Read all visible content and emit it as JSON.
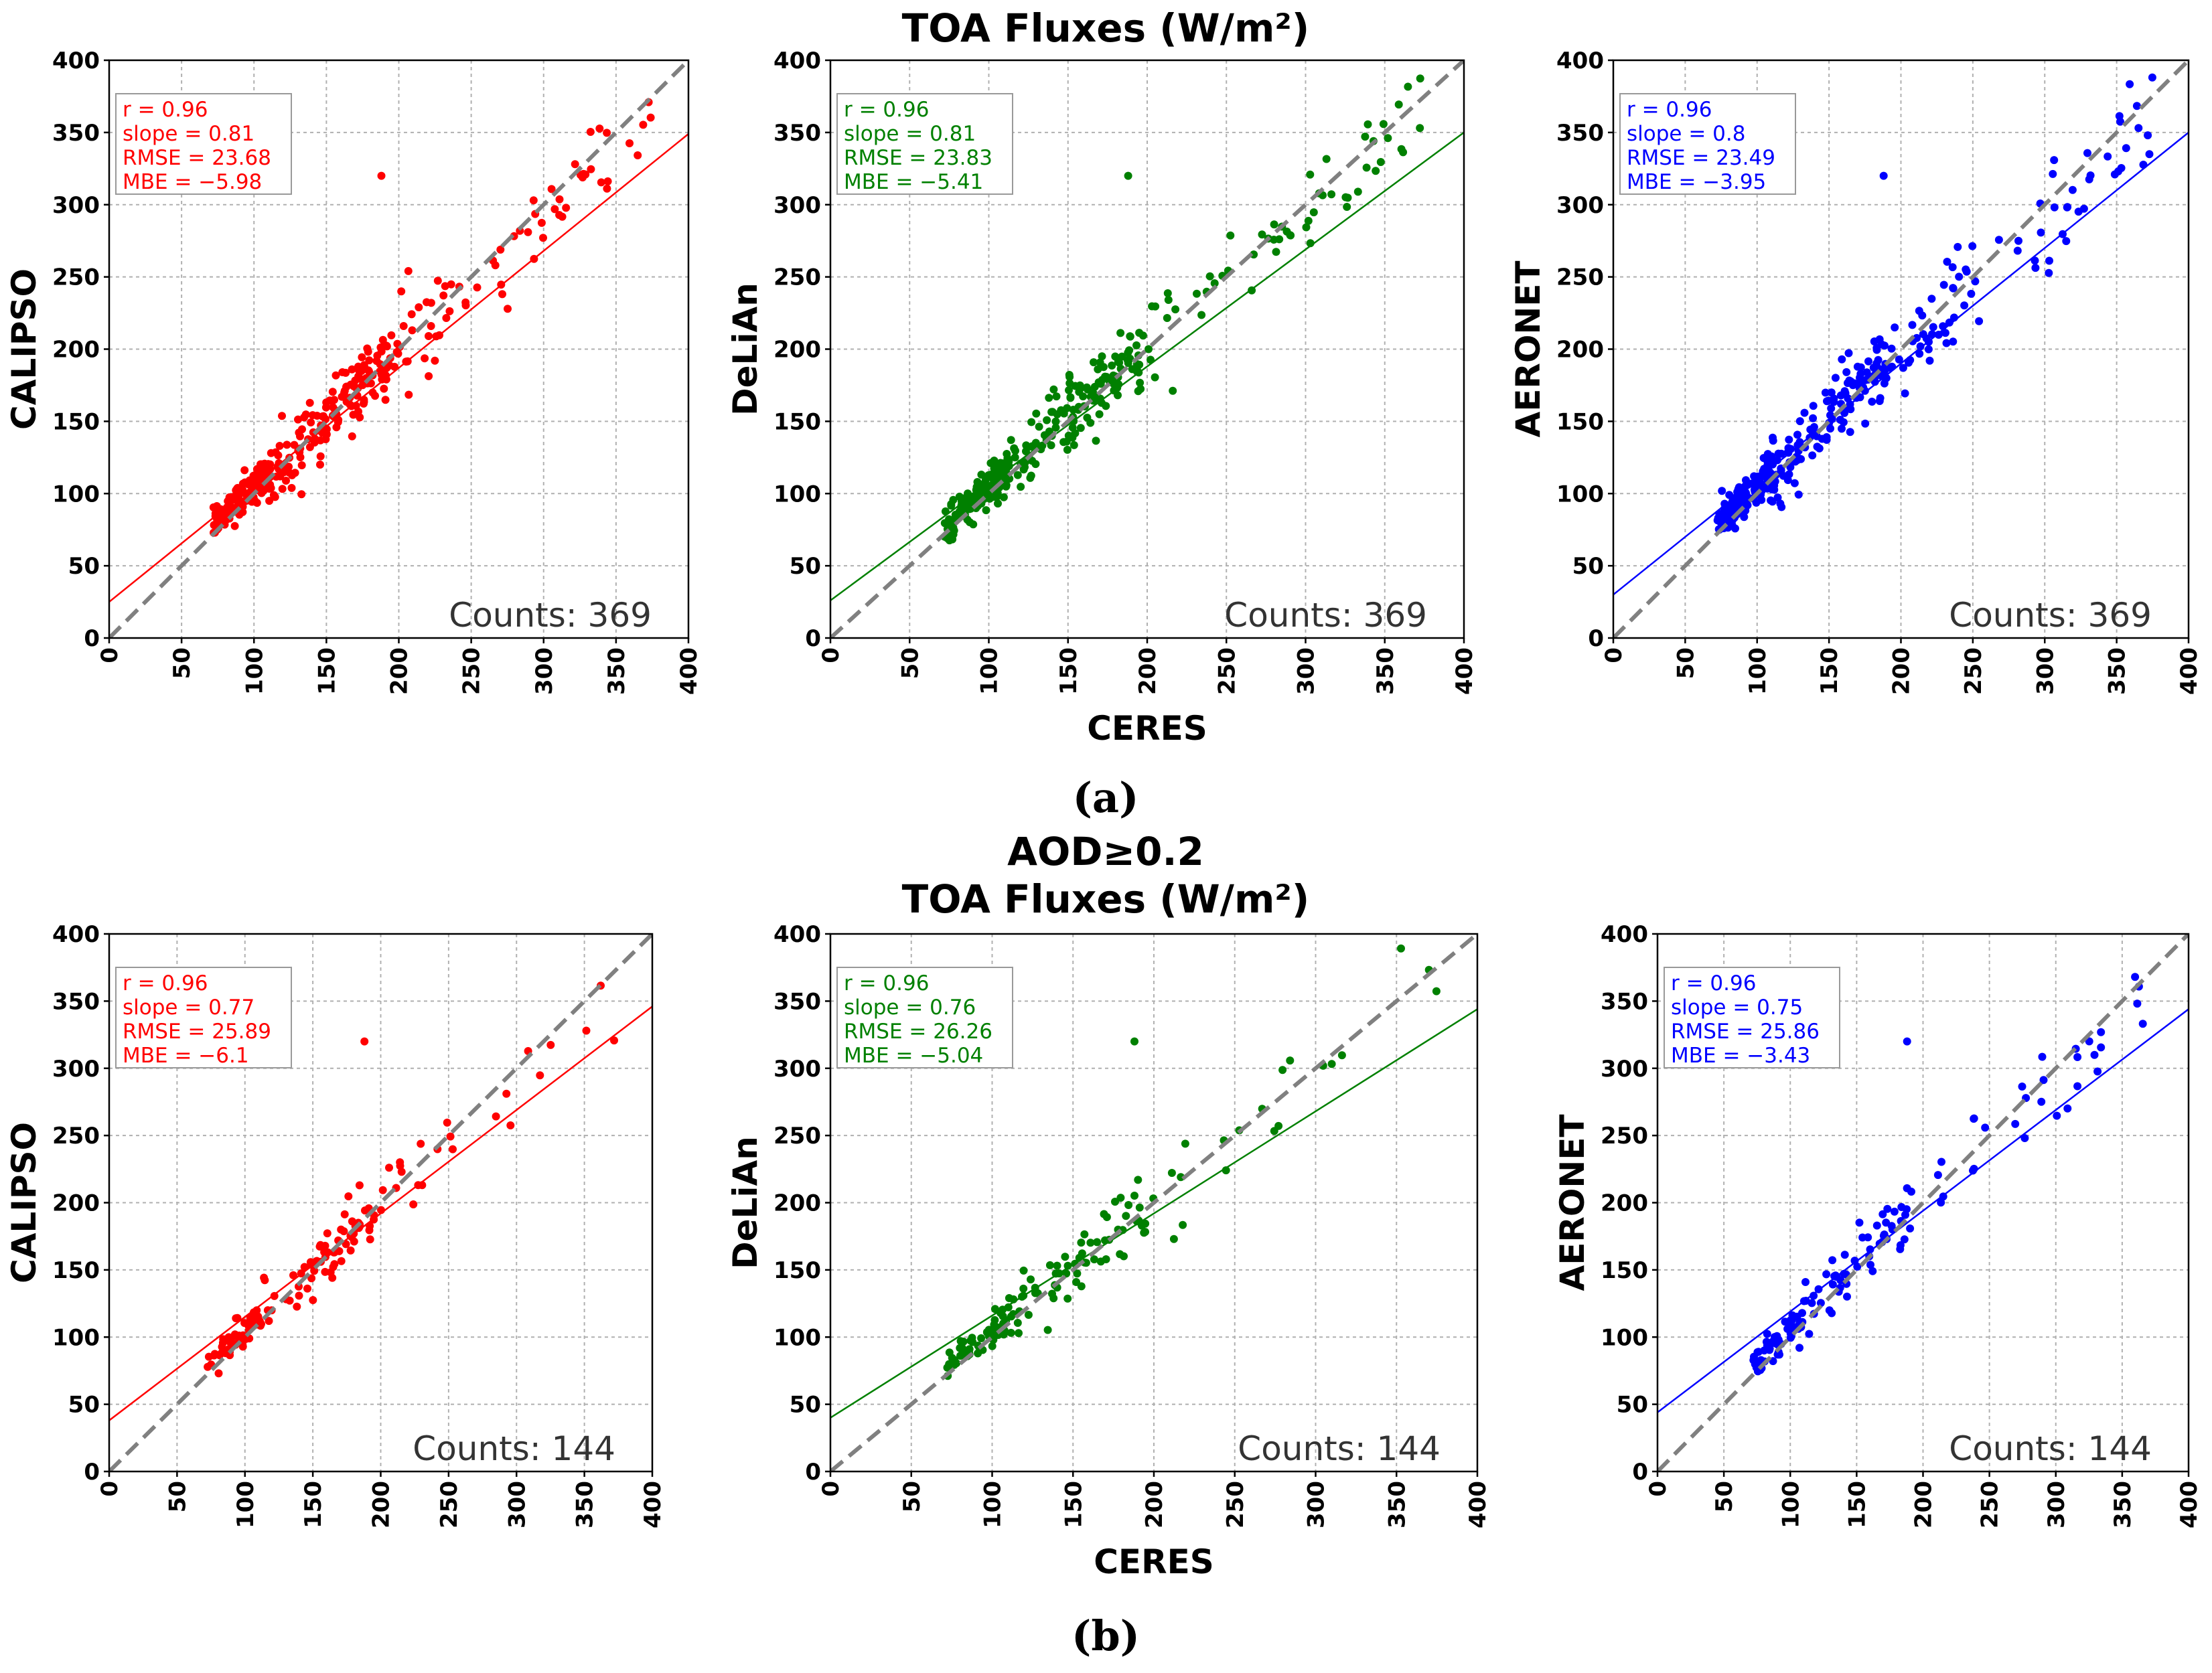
{
  "figure": {
    "title_a": "TOA Fluxes (W/m²)",
    "title_b_line1": "AOD≥0.2",
    "title_b_line2": "TOA Fluxes (W/m²)",
    "label_a": "(a)",
    "label_b": "(b)"
  },
  "chart_data": [
    {
      "type": "scatter",
      "row": "a",
      "ylabel": "CALIPSO",
      "xlabel": "",
      "color": "#ff0000",
      "xlim": [
        0,
        400
      ],
      "ylim": [
        0,
        400
      ],
      "ticks": [
        "0",
        "50",
        "100",
        "150",
        "200",
        "250",
        "300",
        "350",
        "400"
      ],
      "stats": {
        "r": "r = 0.96",
        "slope": "slope = 0.81",
        "rmse": "RMSE = 23.68",
        "mbe": "MBE = −5.98"
      },
      "counts": "Counts: 369",
      "fit": {
        "slope": 0.81,
        "intercept": 25
      },
      "n_points": 369,
      "seed": 11
    },
    {
      "type": "scatter",
      "row": "a",
      "ylabel": "DeLiAn",
      "xlabel": "CERES",
      "color": "#008000",
      "xlim": [
        0,
        400
      ],
      "ylim": [
        0,
        400
      ],
      "ticks": [
        "0",
        "50",
        "100",
        "150",
        "200",
        "250",
        "300",
        "350",
        "400"
      ],
      "stats": {
        "r": "r = 0.96",
        "slope": "slope = 0.81",
        "rmse": "RMSE = 23.83",
        "mbe": "MBE = −5.41"
      },
      "counts": "Counts: 369",
      "fit": {
        "slope": 0.81,
        "intercept": 26
      },
      "n_points": 369,
      "seed": 22
    },
    {
      "type": "scatter",
      "row": "a",
      "ylabel": "AERONET",
      "xlabel": "",
      "color": "#0000ff",
      "xlim": [
        0,
        400
      ],
      "ylim": [
        0,
        400
      ],
      "ticks": [
        "0",
        "50",
        "100",
        "150",
        "200",
        "250",
        "300",
        "350",
        "400"
      ],
      "stats": {
        "r": "r = 0.96",
        "slope": "slope = 0.8",
        "rmse": "RMSE = 23.49",
        "mbe": "MBE = −3.95"
      },
      "counts": "Counts: 369",
      "fit": {
        "slope": 0.8,
        "intercept": 30
      },
      "n_points": 369,
      "seed": 33
    },
    {
      "type": "scatter",
      "row": "b",
      "ylabel": "CALIPSO",
      "xlabel": "",
      "color": "#ff0000",
      "xlim": [
        0,
        400
      ],
      "ylim": [
        0,
        400
      ],
      "ticks": [
        "0",
        "50",
        "100",
        "150",
        "200",
        "250",
        "300",
        "350",
        "400"
      ],
      "stats": {
        "r": "r = 0.96",
        "slope": "slope = 0.77",
        "rmse": "RMSE = 25.89",
        "mbe": "MBE = −6.1"
      },
      "counts": "Counts: 144",
      "fit": {
        "slope": 0.77,
        "intercept": 38
      },
      "n_points": 144,
      "seed": 44
    },
    {
      "type": "scatter",
      "row": "b",
      "ylabel": "DeLiAn",
      "xlabel": "CERES",
      "color": "#008000",
      "xlim": [
        0,
        400
      ],
      "ylim": [
        0,
        400
      ],
      "ticks": [
        "0",
        "50",
        "100",
        "150",
        "200",
        "250",
        "300",
        "350",
        "400"
      ],
      "stats": {
        "r": "r = 0.96",
        "slope": "slope = 0.76",
        "rmse": "RMSE = 26.26",
        "mbe": "MBE = −5.04"
      },
      "counts": "Counts: 144",
      "fit": {
        "slope": 0.76,
        "intercept": 40
      },
      "n_points": 144,
      "seed": 55
    },
    {
      "type": "scatter",
      "row": "b",
      "ylabel": "AERONET",
      "xlabel": "",
      "color": "#0000ff",
      "xlim": [
        0,
        400
      ],
      "ylim": [
        0,
        400
      ],
      "ticks": [
        "0",
        "50",
        "100",
        "150",
        "200",
        "250",
        "300",
        "350",
        "400"
      ],
      "stats": {
        "r": "r = 0.96",
        "slope": "slope = 0.75",
        "rmse": "RMSE = 25.86",
        "mbe": "MBE = −3.43"
      },
      "counts": "Counts: 144",
      "fit": {
        "slope": 0.75,
        "intercept": 44
      },
      "n_points": 144,
      "seed": 66
    }
  ]
}
